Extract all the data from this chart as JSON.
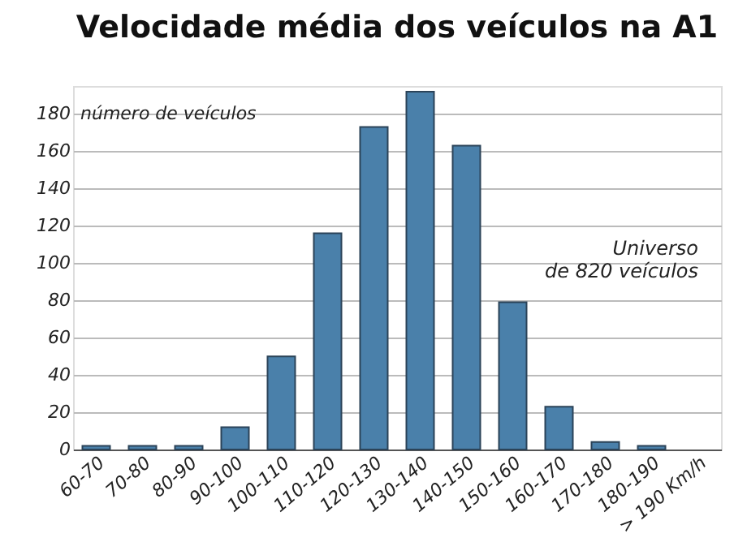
{
  "chart_data": {
    "type": "bar",
    "title": "Velocidade média dos veículos na A1",
    "ylabel": "número de veículos",
    "categories": [
      "60-70",
      "70-80",
      "80-90",
      "90-100",
      "100-110",
      "110-120",
      "120-130",
      "130-140",
      "140-150",
      "150-160",
      "160-170",
      "170-180",
      "180-190",
      "> 190 Km/h"
    ],
    "values": [
      2,
      2,
      2,
      12,
      50,
      116,
      173,
      192,
      163,
      79,
      23,
      4,
      2,
      null
    ],
    "color": "#4a80aa",
    "ylim": [
      0,
      195
    ],
    "yticks": [
      0,
      20,
      40,
      60,
      80,
      100,
      120,
      140,
      160,
      180
    ],
    "grid": "y",
    "annotations": [
      "Universo\nde 820 veículos"
    ]
  }
}
